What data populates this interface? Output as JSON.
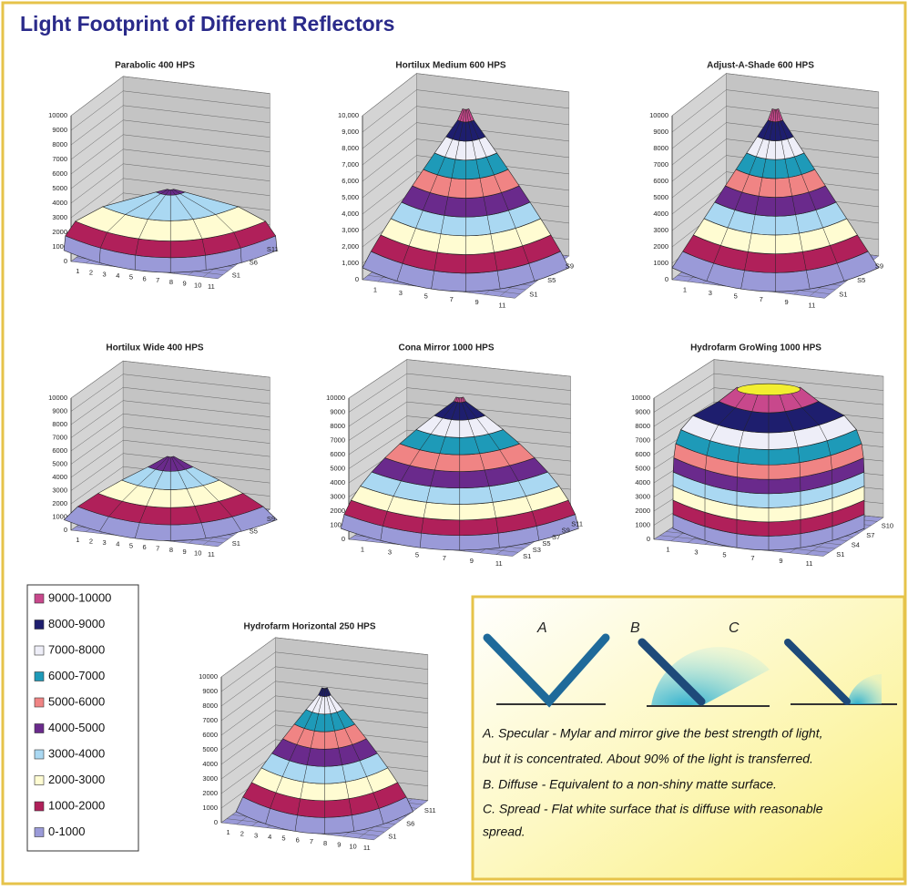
{
  "title": "Light Footprint of Different Reflectors",
  "charts": [
    {
      "title": "Parabolic 400 HPS",
      "yticks": [
        "0",
        "1000",
        "2000",
        "3000",
        "4000",
        "5000",
        "6000",
        "7000",
        "8000",
        "9000",
        "10000"
      ],
      "xticks": [
        "1",
        "2",
        "3",
        "4",
        "5",
        "6",
        "7",
        "8",
        "9",
        "10",
        "11"
      ],
      "series": [
        "S1",
        "S6",
        "S11"
      ]
    },
    {
      "title": "Hortilux Medium 600 HPS",
      "yticks": [
        "0",
        "1,000",
        "2,000",
        "3,000",
        "4,000",
        "5,000",
        "6,000",
        "7,000",
        "8,000",
        "9,000",
        "10,000"
      ],
      "xticks": [
        "1",
        "3",
        "5",
        "7",
        "9",
        "11"
      ],
      "series": [
        "S1",
        "S5",
        "S9"
      ]
    },
    {
      "title": "Adjust-A-Shade 600 HPS",
      "yticks": [
        "0",
        "1000",
        "2000",
        "3000",
        "4000",
        "5000",
        "6000",
        "7000",
        "8000",
        "9000",
        "10000"
      ],
      "xticks": [
        "1",
        "3",
        "5",
        "7",
        "9",
        "11"
      ],
      "series": [
        "S1",
        "S5",
        "S9"
      ]
    },
    {
      "title": "Hortilux Wide 400 HPS",
      "yticks": [
        "0",
        "1000",
        "2000",
        "3000",
        "4000",
        "5000",
        "6000",
        "7000",
        "8000",
        "9000",
        "10000"
      ],
      "xticks": [
        "1",
        "2",
        "3",
        "4",
        "5",
        "6",
        "7",
        "8",
        "9",
        "10",
        "11"
      ],
      "series": [
        "S1",
        "S5",
        "S9"
      ]
    },
    {
      "title": "Cona Mirror 1000 HPS",
      "yticks": [
        "0",
        "1000",
        "2000",
        "3000",
        "4000",
        "5000",
        "6000",
        "7000",
        "8000",
        "9000",
        "10000"
      ],
      "xticks": [
        "1",
        "3",
        "5",
        "7",
        "9",
        "11"
      ],
      "series": [
        "S1",
        "S3",
        "S5",
        "S7",
        "S9",
        "S11"
      ]
    },
    {
      "title": "Hydrofarm GroWing 1000 HPS",
      "yticks": [
        "0",
        "1000",
        "2000",
        "3000",
        "4000",
        "5000",
        "6000",
        "7000",
        "8000",
        "9000",
        "10000"
      ],
      "xticks": [
        "1",
        "3",
        "5",
        "7",
        "9",
        "11"
      ],
      "series": [
        "S1",
        "S4",
        "S7",
        "S10"
      ]
    },
    {
      "title": "Hydrofarm Horizontal 250 HPS",
      "yticks": [
        "0",
        "1000",
        "2000",
        "3000",
        "4000",
        "5000",
        "6000",
        "7000",
        "8000",
        "9000",
        "10000"
      ],
      "xticks": [
        "1",
        "2",
        "3",
        "4",
        "5",
        "6",
        "7",
        "8",
        "9",
        "10",
        "11"
      ],
      "series": [
        "S1",
        "S6",
        "S11"
      ]
    }
  ],
  "legend": [
    {
      "label": "9000-10000",
      "color": "#c8488c"
    },
    {
      "label": "8000-9000",
      "color": "#1e1e6e"
    },
    {
      "label": "7000-8000",
      "color": "#eeeef8"
    },
    {
      "label": "6000-7000",
      "color": "#1e9ab8"
    },
    {
      "label": "5000-6000",
      "color": "#f08484"
    },
    {
      "label": "4000-5000",
      "color": "#6a2a8c"
    },
    {
      "label": "3000-4000",
      "color": "#aad8f2"
    },
    {
      "label": "2000-3000",
      "color": "#fffcd2"
    },
    {
      "label": "1000-2000",
      "color": "#b0205a"
    },
    {
      "label": "0-1000",
      "color": "#9a9ad8"
    }
  ],
  "reflectors": {
    "labels": [
      "A",
      "B",
      "C"
    ],
    "notes": [
      "A. Specular - Mylar and mirror give the best strength of light,",
      "but it is concentrated. About 90% of the light is transferred.",
      "B. Diffuse - Equivalent to a non-shiny matte surface.",
      "C. Spread - Flat white surface that is diffuse with reasonable",
      "spread."
    ]
  }
}
